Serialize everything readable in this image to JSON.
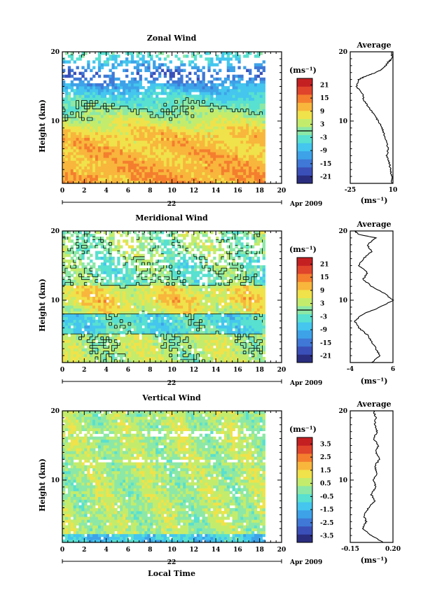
{
  "colors": {
    "scale": [
      "#2a2d7e",
      "#3b4fb8",
      "#3f78d6",
      "#3ea2e8",
      "#44c6ee",
      "#58e0d0",
      "#8ce8a6",
      "#c4ec6c",
      "#f0e24a",
      "#f8b63c",
      "#f47e2e",
      "#e0442a",
      "#c42022"
    ],
    "line": "#000000",
    "background": "#ffffff"
  },
  "chart_data": [
    {
      "type": "heatmap",
      "title": "Zonal Wind",
      "ylabel": "Height (km)",
      "xlim": [
        0,
        20
      ],
      "ylim": [
        1,
        20
      ],
      "xticks": [
        "0",
        "2",
        "4",
        "6",
        "8",
        "10",
        "12",
        "14",
        "16",
        "18",
        "20"
      ],
      "yticks": [
        "10",
        "20"
      ],
      "date_label": "22",
      "month_label": "Apr 2009",
      "data_extent_hours": 18.5,
      "colorbar": {
        "unit": "(ms⁻¹)",
        "ticks": [
          "21",
          "15",
          "9",
          "3",
          "-3",
          "-9",
          "-15",
          "-21"
        ],
        "range": [
          -24,
          24
        ],
        "contour": 0
      },
      "profile": {
        "title": "Average",
        "xlabel": "(ms⁻¹)",
        "xlim": [
          -25,
          10
        ],
        "xticks": [
          "-25",
          "10"
        ],
        "yticks": [
          "10",
          "20"
        ],
        "points": [
          [
            9,
            1
          ],
          [
            9,
            2
          ],
          [
            8,
            3
          ],
          [
            7,
            4
          ],
          [
            5,
            5
          ],
          [
            6,
            6
          ],
          [
            5,
            7
          ],
          [
            3,
            8
          ],
          [
            1,
            9
          ],
          [
            -2,
            10
          ],
          [
            -6,
            11
          ],
          [
            -10,
            12
          ],
          [
            -14,
            13
          ],
          [
            -15,
            14
          ],
          [
            -20,
            15
          ],
          [
            -18,
            16
          ],
          [
            -12,
            16.5
          ],
          [
            -4,
            17
          ],
          [
            1,
            17.5
          ],
          [
            4,
            18
          ],
          [
            6,
            18.5
          ],
          [
            9,
            19
          ],
          [
            9,
            20
          ]
        ]
      }
    },
    {
      "type": "heatmap",
      "title": "Meridional Wind",
      "ylabel": "Height (km)",
      "xlim": [
        0,
        20
      ],
      "ylim": [
        1,
        20
      ],
      "xticks": [
        "0",
        "2",
        "4",
        "6",
        "8",
        "10",
        "12",
        "14",
        "16",
        "18",
        "20"
      ],
      "yticks": [
        "10",
        "20"
      ],
      "date_label": "22",
      "month_label": "Apr 2009",
      "data_extent_hours": 18.5,
      "colorbar": {
        "unit": "(ms⁻¹)",
        "ticks": [
          "21",
          "15",
          "9",
          "3",
          "-3",
          "-9",
          "-15",
          "-21"
        ],
        "range": [
          -24,
          24
        ],
        "contour": 0
      },
      "profile": {
        "title": "Average",
        "xlabel": "(ms⁻¹)",
        "xlim": [
          -4,
          6
        ],
        "xticks": [
          "-4",
          "6"
        ],
        "yticks": [
          "10",
          "20"
        ],
        "points": [
          [
            1,
            1
          ],
          [
            3,
            2
          ],
          [
            2,
            3
          ],
          [
            1,
            4
          ],
          [
            0,
            5
          ],
          [
            -2,
            6
          ],
          [
            -3,
            7
          ],
          [
            -1,
            8
          ],
          [
            3,
            9
          ],
          [
            6,
            10
          ],
          [
            4,
            11
          ],
          [
            1,
            12
          ],
          [
            -1,
            13
          ],
          [
            0,
            14
          ],
          [
            -2,
            15
          ],
          [
            -1,
            16
          ],
          [
            1,
            17
          ],
          [
            0,
            18
          ],
          [
            2,
            19
          ],
          [
            -2,
            19.5
          ],
          [
            -3,
            20
          ]
        ]
      }
    },
    {
      "type": "heatmap",
      "title": "Vertical Wind",
      "ylabel": "Height (km)",
      "xlabel": "Local Time",
      "xlim": [
        0,
        20
      ],
      "ylim": [
        1,
        20
      ],
      "xticks": [
        "0",
        "2",
        "4",
        "6",
        "8",
        "10",
        "12",
        "14",
        "16",
        "18",
        "20"
      ],
      "yticks": [
        "10",
        "20"
      ],
      "date_label": "22",
      "month_label": "Apr 2009",
      "data_extent_hours": 18.5,
      "colorbar": {
        "unit": "(ms⁻¹)",
        "ticks": [
          "3.5",
          "2.5",
          "1.5",
          "0.5",
          "-0.5",
          "-1.5",
          "-2.5",
          "-3.5"
        ],
        "range": [
          -4,
          4
        ]
      },
      "profile": {
        "title": "Average",
        "xlabel": "(ms⁻¹)",
        "xlim": [
          -0.15,
          0.2
        ],
        "xticks": [
          "-0.15",
          "0.20"
        ],
        "yticks": [
          "10",
          "20"
        ],
        "points": [
          [
            0.12,
            1
          ],
          [
            0.02,
            2
          ],
          [
            -0.05,
            3
          ],
          [
            -0.02,
            4
          ],
          [
            -0.04,
            5
          ],
          [
            0.0,
            6
          ],
          [
            0.05,
            7
          ],
          [
            0.02,
            8
          ],
          [
            0.06,
            9
          ],
          [
            0.04,
            10
          ],
          [
            0.07,
            11
          ],
          [
            0.05,
            12
          ],
          [
            0.09,
            13
          ],
          [
            0.06,
            14
          ],
          [
            0.08,
            15
          ],
          [
            0.04,
            16
          ],
          [
            0.07,
            17
          ],
          [
            0.05,
            18
          ],
          [
            0.06,
            19
          ],
          [
            0.04,
            20
          ]
        ]
      }
    }
  ]
}
